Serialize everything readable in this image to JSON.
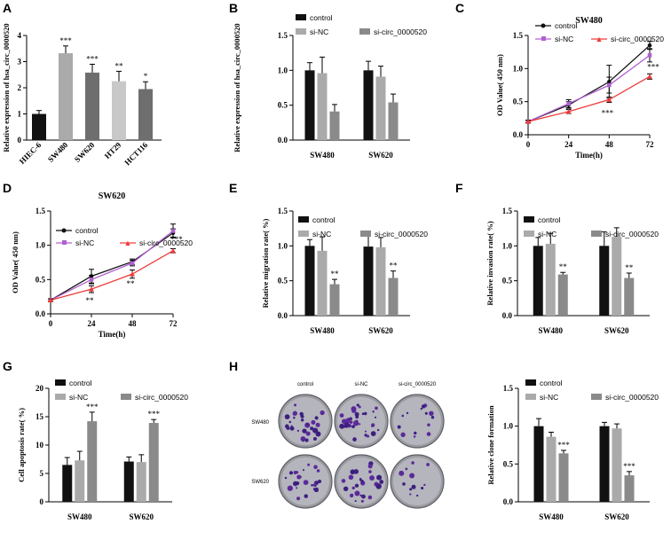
{
  "panels": {
    "A": "A",
    "B": "B",
    "C": "C",
    "D": "D",
    "E": "E",
    "F": "F",
    "G": "G",
    "H": "H"
  },
  "colors": {
    "black": "#111111",
    "dark": "#6e6e6e",
    "light": "#aaaaaa",
    "lighter": "#c8c8c8",
    "mid": "#8a8a8a",
    "purple": "#b060d0",
    "red": "#ee3b3b"
  },
  "chart_data": [
    {
      "id": "A",
      "type": "bar",
      "ylabel": "Relative expression of hsa_circ_0000520",
      "ylim": [
        0,
        4
      ],
      "yticks": [
        "0",
        "1",
        "2",
        "3",
        "4"
      ],
      "categories": [
        "HIEC-6",
        "SW480",
        "SW620",
        "HT29",
        "HCT116"
      ],
      "values": [
        1.0,
        3.32,
        2.58,
        2.25,
        1.95
      ],
      "errors": [
        0.13,
        0.28,
        0.32,
        0.38,
        0.28
      ],
      "sig": [
        "",
        "***",
        "***",
        "**",
        "*"
      ]
    },
    {
      "id": "B",
      "type": "bar",
      "ylabel": "Relative expression of hsa_circ_0000520",
      "ylim": [
        0,
        1.5
      ],
      "yticks": [
        "0.0",
        "0.5",
        "1.0",
        "1.5"
      ],
      "categories": [
        "SW480",
        "SW620"
      ],
      "series": [
        {
          "name": "control",
          "values": [
            1.0,
            1.0
          ],
          "errors": [
            0.11,
            0.13
          ]
        },
        {
          "name": "si-NC",
          "values": [
            0.96,
            0.91
          ],
          "errors": [
            0.23,
            0.15
          ]
        },
        {
          "name": "si-circ_0000520",
          "values": [
            0.41,
            0.54
          ],
          "errors": [
            0.1,
            0.12
          ]
        }
      ]
    },
    {
      "id": "C",
      "type": "line",
      "title": "SW480",
      "xlabel": "Time(h)",
      "ylabel": "OD Value( 450 nm)",
      "ylim": [
        0,
        1.5
      ],
      "yticks": [
        "0.0",
        "0.5",
        "1.0",
        "1.5"
      ],
      "x": [
        0,
        24,
        48,
        72
      ],
      "xticks": [
        "0",
        "24",
        "48",
        "72"
      ],
      "series": [
        {
          "name": "control",
          "values": [
            0.2,
            0.45,
            0.8,
            1.35
          ],
          "errors": [
            0.02,
            0.05,
            0.25,
            0.06
          ]
        },
        {
          "name": "si-NC",
          "values": [
            0.2,
            0.47,
            0.75,
            1.2
          ],
          "errors": [
            0.02,
            0.06,
            0.12,
            0.1
          ]
        },
        {
          "name": "si-circ_0000520",
          "values": [
            0.2,
            0.35,
            0.53,
            0.88
          ],
          "errors": [
            0.02,
            0.03,
            0.04,
            0.04
          ]
        }
      ],
      "sig": [
        "",
        "",
        "***",
        "***"
      ]
    },
    {
      "id": "D",
      "type": "line",
      "title": "SW620",
      "xlabel": "Time(h)",
      "ylabel": "OD Value( 450 nm)",
      "ylim": [
        0,
        1.5
      ],
      "yticks": [
        "0.0",
        "0.5",
        "1.0",
        "1.5"
      ],
      "x": [
        0,
        24,
        48,
        72
      ],
      "xticks": [
        "0",
        "24",
        "48",
        "72"
      ],
      "series": [
        {
          "name": "control",
          "values": [
            0.2,
            0.55,
            0.76,
            1.18
          ],
          "errors": [
            0.02,
            0.1,
            0.04,
            0.06
          ]
        },
        {
          "name": "si-NC",
          "values": [
            0.2,
            0.5,
            0.74,
            1.21
          ],
          "errors": [
            0.02,
            0.06,
            0.04,
            0.1
          ]
        },
        {
          "name": "si-circ_0000520",
          "values": [
            0.2,
            0.36,
            0.58,
            0.92
          ],
          "errors": [
            0.02,
            0.05,
            0.06,
            0.03
          ]
        }
      ],
      "sig": [
        "",
        "**",
        "**",
        "***"
      ]
    },
    {
      "id": "E",
      "type": "bar",
      "ylabel": "Relative migration rate( %)",
      "ylim": [
        0,
        1.5
      ],
      "yticks": [
        "0.0",
        "0.5",
        "1.0",
        "1.5"
      ],
      "categories": [
        "SW480",
        "SW620"
      ],
      "series": [
        {
          "name": "control",
          "values": [
            1.0,
            0.99
          ],
          "errors": [
            0.09,
            0.22
          ]
        },
        {
          "name": "si-NC",
          "values": [
            0.93,
            0.98
          ],
          "errors": [
            0.2,
            0.14
          ]
        },
        {
          "name": "si-circ_0000520",
          "values": [
            0.45,
            0.54
          ],
          "errors": [
            0.07,
            0.1
          ]
        }
      ],
      "sig": [
        "**",
        "**"
      ]
    },
    {
      "id": "F",
      "type": "bar",
      "ylabel": "Relative invasion rate( %)",
      "ylim": [
        0,
        1.5
      ],
      "yticks": [
        "0.0",
        "0.5",
        "1.0",
        "1.5"
      ],
      "categories": [
        "SW480",
        "SW620"
      ],
      "series": [
        {
          "name": "control",
          "values": [
            1.0,
            1.0
          ],
          "errors": [
            0.12,
            0.2
          ]
        },
        {
          "name": "si-NC",
          "values": [
            1.03,
            1.13
          ],
          "errors": [
            0.15,
            0.13
          ]
        },
        {
          "name": "si-circ_0000520",
          "values": [
            0.59,
            0.54
          ],
          "errors": [
            0.03,
            0.07
          ]
        }
      ],
      "sig": [
        "**",
        "**"
      ]
    },
    {
      "id": "G",
      "type": "bar",
      "ylabel": "Cell apoptosis rate( %)",
      "ylim": [
        0,
        20
      ],
      "yticks": [
        "0",
        "5",
        "10",
        "15",
        "20"
      ],
      "categories": [
        "SW480",
        "SW620"
      ],
      "series": [
        {
          "name": "control",
          "values": [
            6.5,
            7.1
          ],
          "errors": [
            1.3,
            0.8
          ]
        },
        {
          "name": "si-NC",
          "values": [
            7.3,
            7.0
          ],
          "errors": [
            1.6,
            1.3
          ]
        },
        {
          "name": "si-circ_0000520",
          "values": [
            14.2,
            13.9
          ],
          "errors": [
            1.6,
            0.6
          ]
        }
      ],
      "sig": [
        "***",
        "***"
      ]
    },
    {
      "id": "H",
      "type": "bar",
      "ylabel": "Relative clone formation",
      "ylim": [
        0,
        1.5
      ],
      "yticks": [
        "0.0",
        "0.5",
        "1.0",
        "1.5"
      ],
      "categories": [
        "SW480",
        "SW620"
      ],
      "series": [
        {
          "name": "control",
          "values": [
            1.0,
            1.0
          ],
          "errors": [
            0.1,
            0.05
          ]
        },
        {
          "name": "si-NC",
          "values": [
            0.86,
            0.97
          ],
          "errors": [
            0.06,
            0.06
          ]
        },
        {
          "name": "si-circ_0000520",
          "values": [
            0.64,
            0.35
          ],
          "errors": [
            0.04,
            0.05
          ]
        }
      ],
      "sig": [
        "***",
        "***"
      ]
    }
  ],
  "plates": {
    "cols": [
      "control",
      "si-NC",
      "si-circ_0000520"
    ],
    "rows": [
      "SW480",
      "SW620"
    ]
  }
}
